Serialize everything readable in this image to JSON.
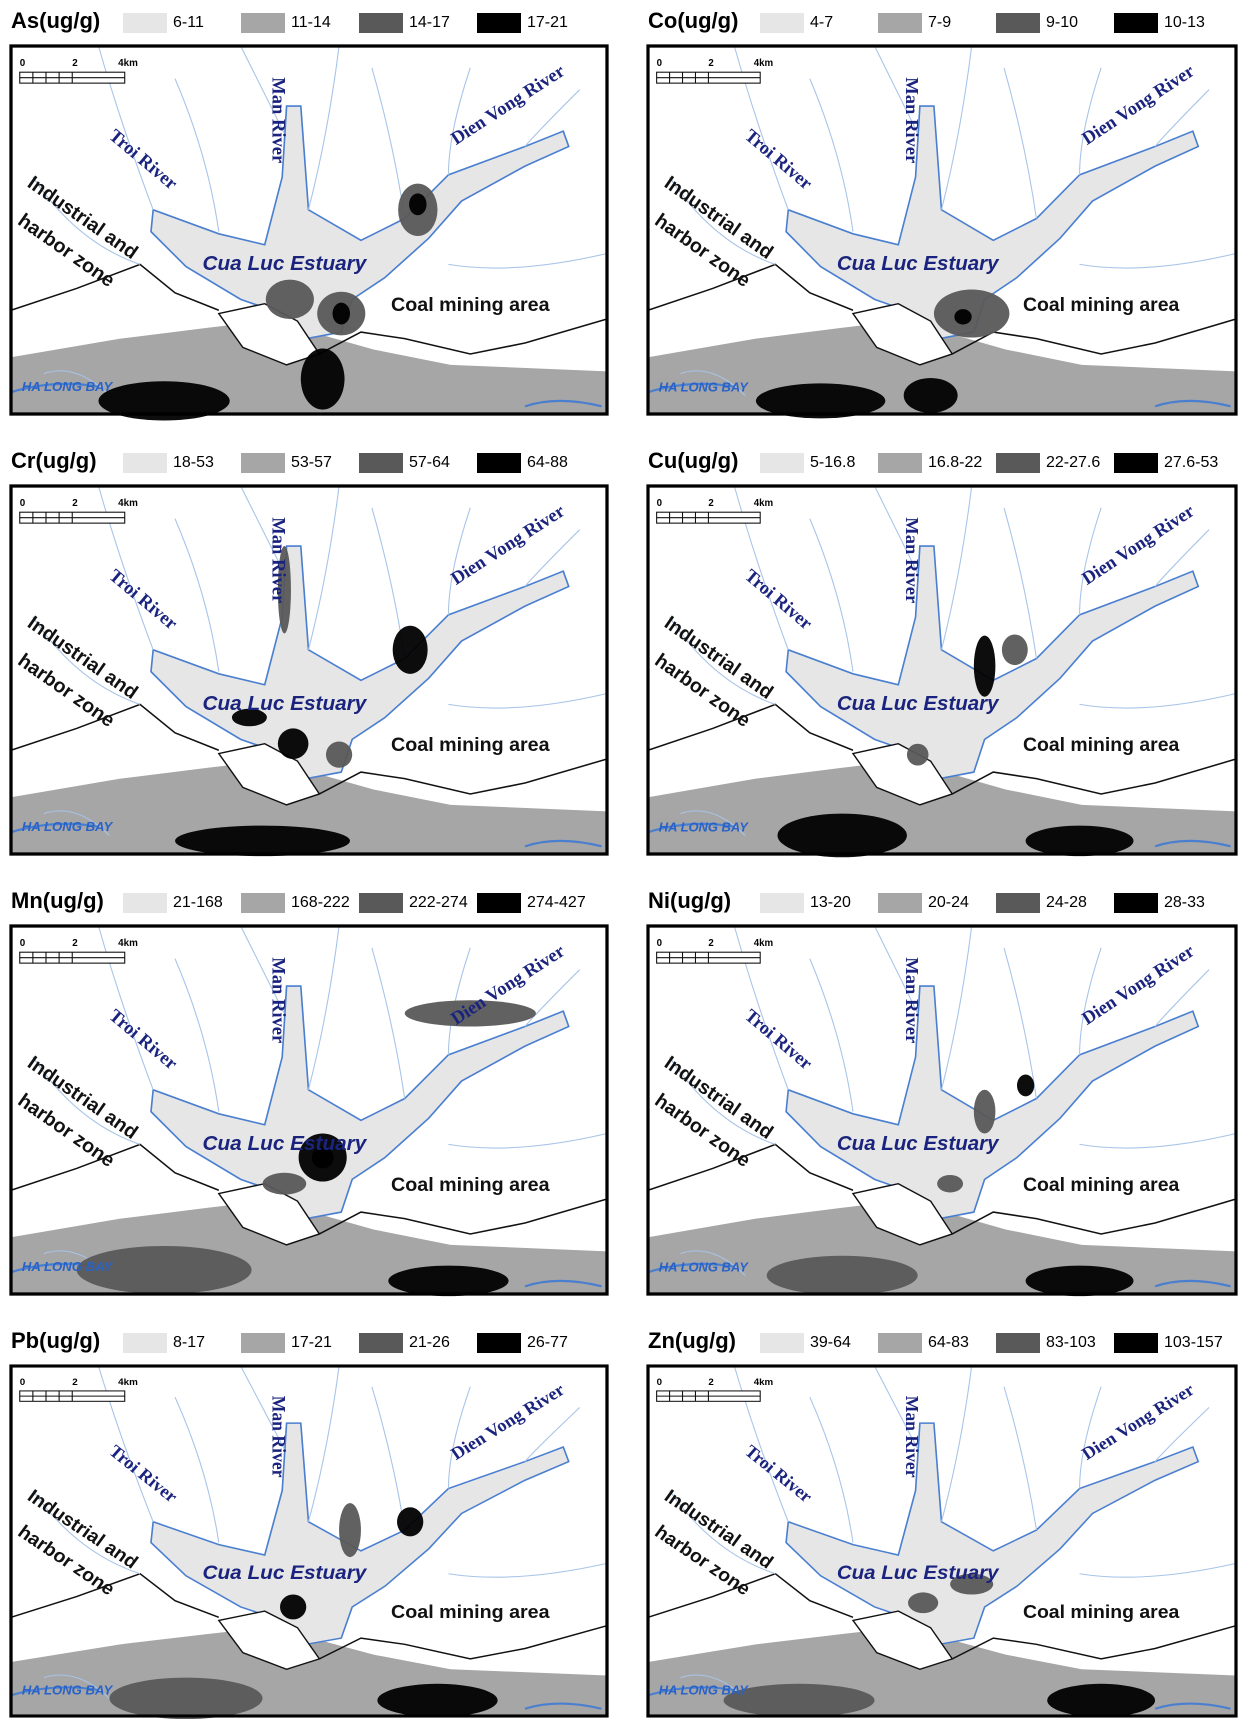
{
  "panels": [
    {
      "title": "As(ug/g)",
      "legend": [
        "6-11",
        "11-14",
        "14-17",
        "17-21"
      ]
    },
    {
      "title": "Co(ug/g)",
      "legend": [
        "4-7",
        "7-9",
        "9-10",
        "10-13"
      ]
    },
    {
      "title": "Cr(ug/g)",
      "legend": [
        "18-53",
        "53-57",
        "57-64",
        "64-88"
      ]
    },
    {
      "title": "Cu(ug/g)",
      "legend": [
        "5-16.8",
        "16.8-22",
        "22-27.6",
        "27.6-53"
      ]
    },
    {
      "title": "Mn(ug/g)",
      "legend": [
        "21-168",
        "168-222",
        "222-274",
        "274-427"
      ]
    },
    {
      "title": "Ni(ug/g)",
      "legend": [
        "13-20",
        "20-24",
        "24-28",
        "28-33"
      ]
    },
    {
      "title": "Pb(ug/g)",
      "legend": [
        "8-17",
        "17-21",
        "21-26",
        "26-77"
      ]
    },
    {
      "title": "Zn(ug/g)",
      "legend": [
        "39-64",
        "64-83",
        "83-103",
        "103-157"
      ]
    }
  ],
  "map_labels": {
    "scale": [
      "0",
      "2",
      "4km"
    ],
    "troi": "Troi River",
    "man": "Man River",
    "dien_vong": "Dien Vong River",
    "industrial": [
      "Industrial and",
      "harbor zone"
    ],
    "estuary": "Cua Luc Estuary",
    "coal": "Coal mining area",
    "bay": "HA LONG BAY"
  }
}
